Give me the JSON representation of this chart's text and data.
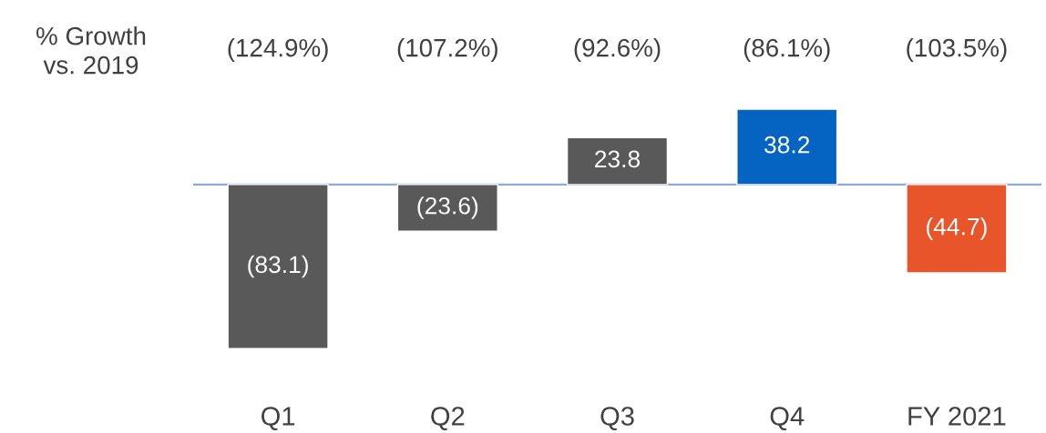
{
  "chart_data": {
    "type": "bar",
    "categories": [
      "Q1",
      "Q2",
      "Q3",
      "Q4",
      "FY 2021"
    ],
    "values": [
      -83.1,
      -23.6,
      23.8,
      38.2,
      -44.7
    ],
    "colors": [
      "#595959",
      "#595959",
      "#595959",
      "#0563c1",
      "#e8552a"
    ],
    "value_labels": [
      "(83.1)",
      "(23.6)",
      "23.8",
      "38.2",
      "(44.7)"
    ],
    "annotations": [
      "% Growth\nvs. 2019",
      "(124.9%)",
      "(107.2%)",
      "(92.6%)",
      "(86.1%)",
      "(103.5%)"
    ],
    "ref_lines": [
      {
        "axis": "y",
        "value": 0,
        "color": "#8eaadb",
        "line_style": "solid"
      }
    ],
    "grid": false,
    "legend": false
  }
}
